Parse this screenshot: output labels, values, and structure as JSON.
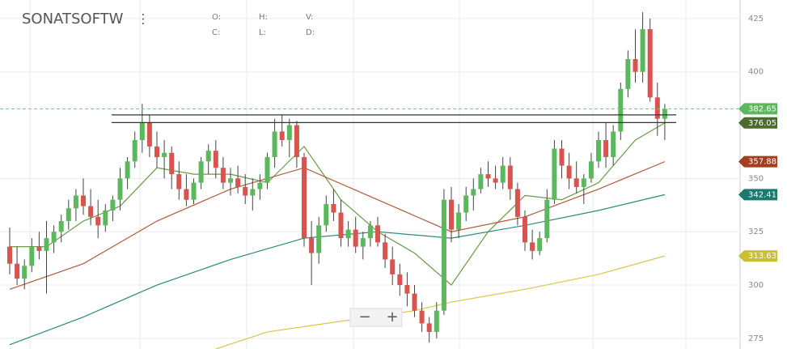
{
  "chart_data": {
    "type": "candlestick",
    "title": "SONATSOFTW",
    "ohlc_fields": [
      "O:",
      "H:",
      "V:",
      "C:",
      "L:",
      "D:"
    ],
    "zoom_controls": [
      "−",
      "+"
    ],
    "up_color": "#5cb85c",
    "down_color": "#d9534f",
    "ylim": [
      270,
      433.7
    ],
    "yticks": [
      275,
      300,
      325,
      350,
      400,
      425
    ],
    "grid": true,
    "ohlc": [
      [
        318,
        327,
        305,
        310
      ],
      [
        310,
        318,
        300,
        303
      ],
      [
        303,
        312,
        298,
        309
      ],
      [
        309,
        322,
        306,
        318
      ],
      [
        318,
        325,
        312,
        316
      ],
      [
        316,
        330,
        296,
        322
      ],
      [
        320,
        328,
        315,
        325
      ],
      [
        325,
        333,
        320,
        330
      ],
      [
        330,
        340,
        326,
        336
      ],
      [
        336,
        345,
        330,
        342
      ],
      [
        342,
        350,
        333,
        337
      ],
      [
        337,
        345,
        328,
        332
      ],
      [
        332,
        340,
        322,
        328
      ],
      [
        328,
        338,
        325,
        335
      ],
      [
        335,
        342,
        330,
        340
      ],
      [
        340,
        355,
        335,
        350
      ],
      [
        350,
        360,
        345,
        358
      ],
      [
        358,
        372,
        355,
        368
      ],
      [
        368,
        385,
        362,
        376
      ],
      [
        376,
        380,
        360,
        365
      ],
      [
        365,
        372,
        355,
        360
      ],
      [
        360,
        368,
        350,
        362
      ],
      [
        362,
        365,
        345,
        352
      ],
      [
        352,
        358,
        340,
        345
      ],
      [
        345,
        352,
        337,
        340
      ],
      [
        340,
        350,
        338,
        348
      ],
      [
        348,
        360,
        345,
        358
      ],
      [
        358,
        366,
        352,
        363
      ],
      [
        363,
        368,
        350,
        355
      ],
      [
        355,
        360,
        345,
        348
      ],
      [
        348,
        355,
        342,
        350
      ],
      [
        350,
        356,
        343,
        346
      ],
      [
        346,
        352,
        338,
        342
      ],
      [
        342,
        350,
        335,
        345
      ],
      [
        345,
        352,
        340,
        348
      ],
      [
        348,
        362,
        345,
        360
      ],
      [
        360,
        378,
        355,
        372
      ],
      [
        372,
        380,
        365,
        368
      ],
      [
        368,
        378,
        360,
        375
      ],
      [
        375,
        377,
        355,
        360
      ],
      [
        360,
        362,
        318,
        322
      ],
      [
        322,
        330,
        300,
        315
      ],
      [
        315,
        332,
        310,
        328
      ],
      [
        328,
        342,
        325,
        338
      ],
      [
        338,
        345,
        330,
        334
      ],
      [
        334,
        340,
        318,
        322
      ],
      [
        322,
        330,
        318,
        326
      ],
      [
        326,
        332,
        315,
        318
      ],
      [
        318,
        325,
        312,
        322
      ],
      [
        322,
        330,
        318,
        328
      ],
      [
        328,
        332,
        318,
        320
      ],
      [
        320,
        324,
        308,
        312
      ],
      [
        312,
        318,
        300,
        305
      ],
      [
        305,
        310,
        295,
        300
      ],
      [
        300,
        306,
        290,
        296
      ],
      [
        296,
        300,
        285,
        288
      ],
      [
        288,
        292,
        278,
        282
      ],
      [
        282,
        285,
        273,
        278
      ],
      [
        278,
        292,
        275,
        288
      ],
      [
        288,
        345,
        286,
        340
      ],
      [
        340,
        346,
        320,
        326
      ],
      [
        326,
        338,
        322,
        334
      ],
      [
        334,
        346,
        330,
        342
      ],
      [
        342,
        350,
        335,
        345
      ],
      [
        345,
        355,
        343,
        352
      ],
      [
        352,
        358,
        346,
        350
      ],
      [
        350,
        356,
        345,
        348
      ],
      [
        348,
        360,
        345,
        356
      ],
      [
        356,
        360,
        340,
        345
      ],
      [
        345,
        348,
        328,
        332
      ],
      [
        332,
        335,
        316,
        320
      ],
      [
        320,
        326,
        312,
        316
      ],
      [
        316,
        325,
        314,
        322
      ],
      [
        322,
        345,
        320,
        340
      ],
      [
        340,
        368,
        338,
        364
      ],
      [
        364,
        368,
        350,
        356
      ],
      [
        356,
        362,
        345,
        350
      ],
      [
        350,
        358,
        343,
        346
      ],
      [
        346,
        352,
        338,
        350
      ],
      [
        350,
        362,
        348,
        358
      ],
      [
        358,
        372,
        355,
        368
      ],
      [
        368,
        376,
        355,
        360
      ],
      [
        360,
        375,
        356,
        372
      ],
      [
        372,
        395,
        368,
        392
      ],
      [
        392,
        410,
        388,
        406
      ],
      [
        406,
        420,
        395,
        400
      ],
      [
        400,
        428,
        395,
        420
      ],
      [
        420,
        425,
        386,
        388
      ],
      [
        388,
        395,
        370,
        378
      ],
      [
        378,
        385,
        368,
        382.65
      ]
    ],
    "lines": [
      {
        "color": "#6a9a4a",
        "x": [
          0,
          5,
          10,
          15,
          20,
          25,
          30,
          35,
          40,
          45,
          50,
          55,
          60,
          65,
          70,
          75,
          80,
          85,
          89
        ],
        "values": [
          318,
          318,
          330,
          337,
          355,
          352,
          352,
          348,
          365,
          340,
          325,
          315,
          300,
          325,
          342,
          340,
          348,
          368,
          376.05
        ]
      },
      {
        "color": "#b05a3a",
        "x": [
          0,
          10,
          20,
          30,
          40,
          50,
          60,
          70,
          80,
          89
        ],
        "values": [
          298,
          310,
          330,
          345,
          355,
          340,
          325,
          332,
          345,
          357.88
        ]
      },
      {
        "color": "#2a8a7e",
        "x": [
          0,
          10,
          20,
          30,
          40,
          50,
          60,
          70,
          80,
          89
        ],
        "values": [
          272,
          285,
          300,
          312,
          322,
          325,
          322,
          328,
          335,
          342.41
        ]
      },
      {
        "color": "#d8c848",
        "x": [
          28,
          35,
          45,
          55,
          60,
          70,
          80,
          89
        ],
        "values": [
          270,
          278,
          283,
          288,
          292,
          298,
          305,
          313.63
        ]
      }
    ],
    "levels": [
      379.8,
      376.2
    ],
    "last_price": 382.65,
    "markers": [
      {
        "value": 382.65,
        "color": "#5cb85c"
      },
      {
        "value": 376.05,
        "color": "#4e6b2e"
      },
      {
        "value": 357.88,
        "color": "#a0401e"
      },
      {
        "value": 342.41,
        "color": "#1a7a6e"
      },
      {
        "value": 313.63,
        "color": "#c8c030"
      }
    ]
  }
}
